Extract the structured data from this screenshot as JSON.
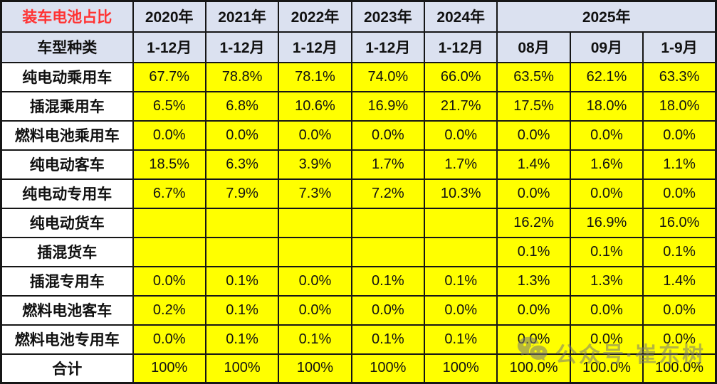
{
  "colors": {
    "header_bg": "#DBE1F0",
    "cell_bg": "#FFFF00",
    "label_bg": "#FFFFFF",
    "border": "#161616",
    "title_red": "#FF3232",
    "watermark_gray": "#777777"
  },
  "watermark": {
    "icon": "wechat-icon",
    "text": "公众号·崔东树"
  },
  "chart_data": {
    "type": "table",
    "title": "装车电池占比",
    "corner_label": "车型种类",
    "year_headers": [
      {
        "label": "2020年",
        "span": 1
      },
      {
        "label": "2021年",
        "span": 1
      },
      {
        "label": "2022年",
        "span": 1
      },
      {
        "label": "2023年",
        "span": 1
      },
      {
        "label": "2024年",
        "span": 1
      },
      {
        "label": "2025年",
        "span": 3
      }
    ],
    "period_headers": [
      "1-12月",
      "1-12月",
      "1-12月",
      "1-12月",
      "1-12月",
      "08月",
      "09月",
      "1-9月"
    ],
    "rows": [
      {
        "label": "纯电动乘用车",
        "values": [
          "67.7%",
          "78.8%",
          "78.1%",
          "74.0%",
          "66.0%",
          "63.5%",
          "62.1%",
          "63.3%"
        ]
      },
      {
        "label": "插混乘用车",
        "values": [
          "6.5%",
          "6.8%",
          "10.6%",
          "16.9%",
          "21.7%",
          "17.5%",
          "18.0%",
          "18.0%"
        ]
      },
      {
        "label": "燃料电池乘用车",
        "values": [
          "0.0%",
          "0.0%",
          "0.0%",
          "0.0%",
          "0.0%",
          "0.0%",
          "0.0%",
          "0.0%"
        ]
      },
      {
        "label": "纯电动客车",
        "values": [
          "18.5%",
          "6.3%",
          "3.9%",
          "1.7%",
          "1.7%",
          "1.4%",
          "1.6%",
          "1.1%"
        ]
      },
      {
        "label": "纯电动专用车",
        "values": [
          "6.7%",
          "7.9%",
          "7.3%",
          "7.2%",
          "10.3%",
          "0.0%",
          "0.0%",
          "0.0%"
        ]
      },
      {
        "label": "纯电动货车",
        "values": [
          "",
          "",
          "",
          "",
          "",
          "16.2%",
          "16.9%",
          "16.0%"
        ]
      },
      {
        "label": "插混货车",
        "values": [
          "",
          "",
          "",
          "",
          "",
          "0.1%",
          "0.1%",
          "0.1%"
        ]
      },
      {
        "label": "插混专用车",
        "values": [
          "0.0%",
          "0.1%",
          "0.0%",
          "0.1%",
          "0.1%",
          "1.3%",
          "1.3%",
          "1.4%"
        ]
      },
      {
        "label": "燃料电池客车",
        "values": [
          "0.2%",
          "0.1%",
          "0.0%",
          "0.0%",
          "0.0%",
          "0.0%",
          "0.0%",
          "0.0%"
        ]
      },
      {
        "label": "燃料电池专用车",
        "values": [
          "0.0%",
          "0.1%",
          "0.1%",
          "0.1%",
          "0.1%",
          "0.0%",
          "0.0%",
          "0.0%"
        ]
      },
      {
        "label": "合计",
        "values": [
          "100%",
          "100%",
          "100%",
          "100%",
          "100%",
          "100.0%",
          "100.0%",
          "100.0%"
        ]
      }
    ]
  }
}
